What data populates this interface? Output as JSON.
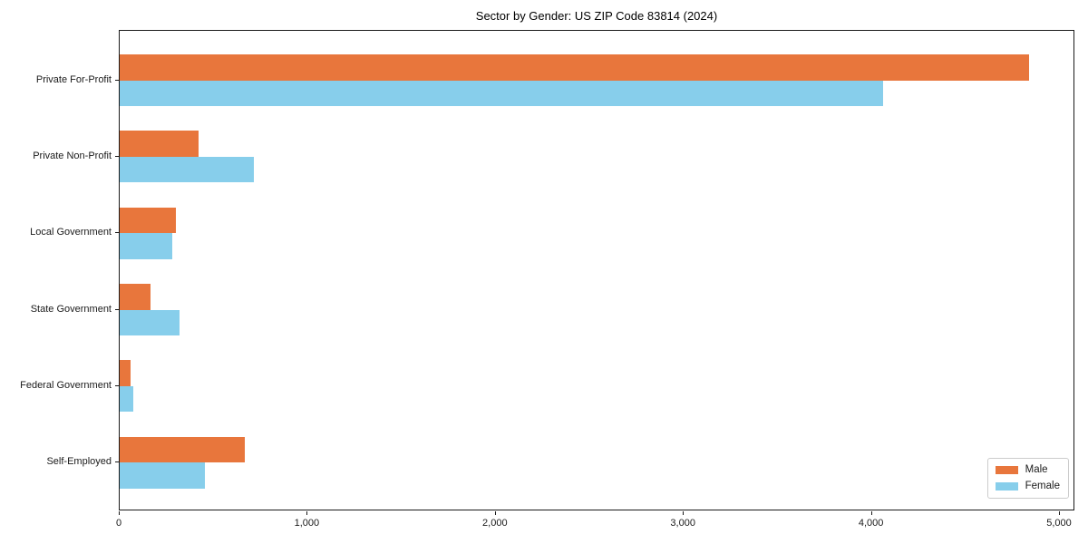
{
  "chart_data": {
    "type": "bar",
    "orientation": "horizontal",
    "title": "Sector by Gender: US ZIP Code 83814 (2024)",
    "categories": [
      "Private For-Profit",
      "Private Non-Profit",
      "Local Government",
      "State Government",
      "Federal Government",
      "Self-Employed"
    ],
    "series": [
      {
        "name": "Male",
        "color": "#e8763c",
        "values": [
          4835,
          420,
          300,
          165,
          58,
          665
        ]
      },
      {
        "name": "Female",
        "color": "#87ceeb",
        "values": [
          4060,
          715,
          280,
          320,
          72,
          455
        ]
      }
    ],
    "xlim": [
      0,
      5082
    ],
    "xticks": [
      0,
      1000,
      2000,
      3000,
      4000,
      5000
    ],
    "xtick_labels": [
      "0",
      "1,000",
      "2,000",
      "3,000",
      "4,000",
      "5,000"
    ],
    "ylabel": "",
    "xlabel": "",
    "grid": false,
    "legend_position": "lower right"
  }
}
